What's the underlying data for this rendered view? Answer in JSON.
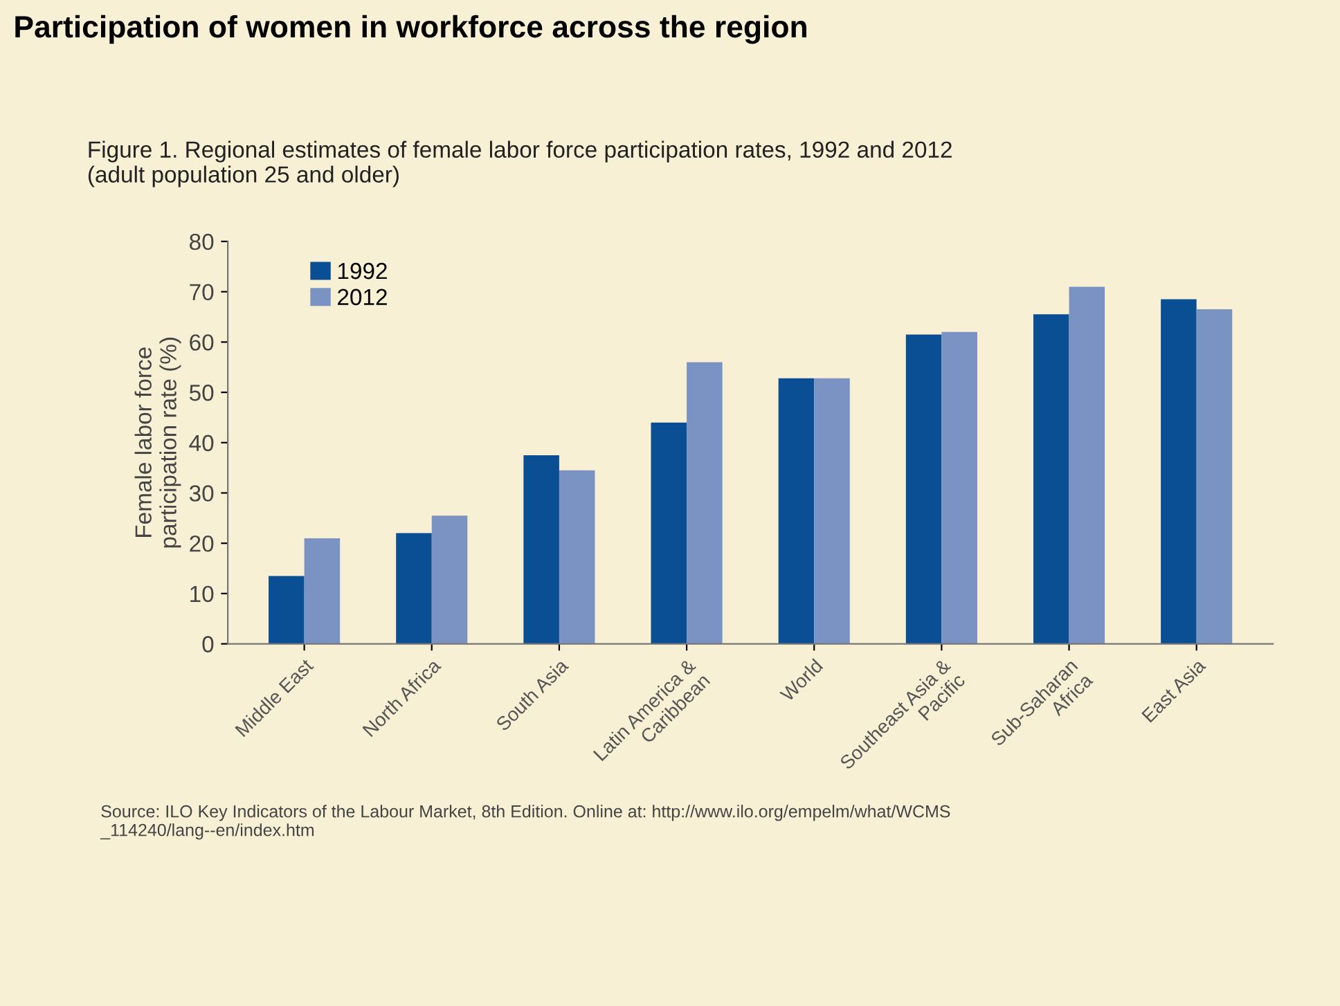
{
  "chart_data": {
    "type": "bar",
    "title": "Participation of women in workforce across the region",
    "subtitle": "Figure 1. Regional estimates of female labor force participation rates, 1992 and 2012\n(adult population 25 and older)",
    "ylabel": "Female labor force\nparticipation rate (%)",
    "categories": [
      "Middle East",
      "North Africa",
      "South Asia",
      "Latin America &\nCaribbean",
      "World",
      "Southeast Asia &\nPacific",
      "Sub-Saharan\nAfrica",
      "East Asia"
    ],
    "series": [
      {
        "name": "1992",
        "color": "#0a4f94",
        "values": [
          13.5,
          22,
          37.5,
          44,
          52.8,
          61.5,
          65.5,
          68.5
        ]
      },
      {
        "name": "2012",
        "color": "#7b93c2",
        "values": [
          21,
          25.5,
          34.5,
          56,
          52.8,
          62,
          71,
          66.5
        ]
      }
    ],
    "ylim": [
      0,
      80
    ],
    "yticks": [
      0,
      10,
      20,
      30,
      40,
      50,
      60,
      70,
      80
    ],
    "grid": false,
    "legend": "top left",
    "annotations": [
      "Source: ILO Key Indicators of the Labour Market, 8th Edition. Online at: http://www.ilo.org/empelm/what/WCMS\n_114240/lang--en/index.htm"
    ]
  }
}
